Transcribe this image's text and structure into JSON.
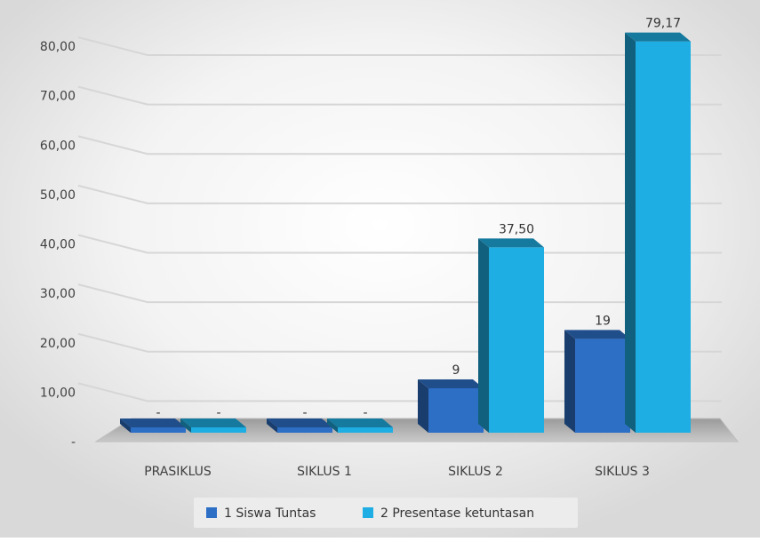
{
  "chart_data": {
    "type": "bar",
    "title": "",
    "xlabel": "",
    "ylabel": "",
    "categories": [
      "PRASIKLUS",
      "SIKLUS 1",
      "SIKLUS 2",
      "SIKLUS 3"
    ],
    "ylim": [
      0,
      80
    ],
    "yticks": [
      "-",
      "10,00",
      "20,00",
      "30,00",
      "40,00",
      "50,00",
      "60,00",
      "70,00",
      "80,00"
    ],
    "grid": true,
    "legend_position": "bottom",
    "series": [
      {
        "name": "1   Siswa Tuntas",
        "values": [
          0,
          0,
          9,
          19
        ],
        "labels": [
          "-",
          "-",
          "9",
          "19"
        ],
        "color": "#2E6FC6"
      },
      {
        "name": "2   Presentase ketuntasan",
        "values": [
          0,
          0,
          37.5,
          79.17
        ],
        "labels": [
          "-",
          "-",
          "37,50",
          "79,17"
        ],
        "color": "#1FAEE3"
      }
    ]
  }
}
